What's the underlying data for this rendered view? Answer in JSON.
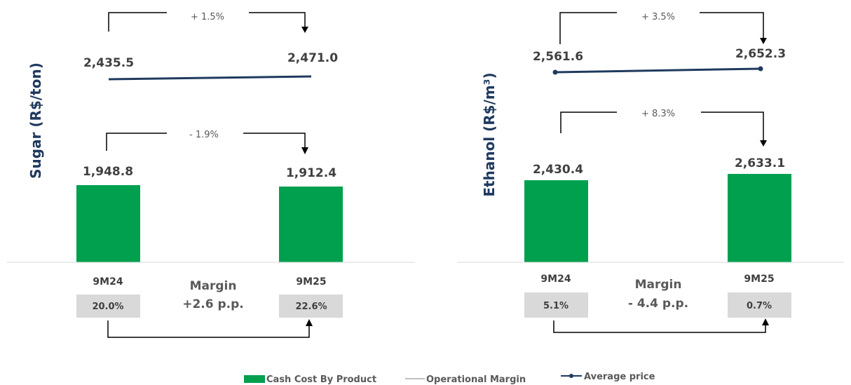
{
  "colors": {
    "bar": "#00a04f",
    "line": "#1f3a5f",
    "margin_box": "#d9d9d9",
    "operational_margin": "#bfbfbf"
  },
  "legend": {
    "cash_cost": "Cash Cost By Product",
    "operational_margin": "Operational Margin",
    "average_price": "Average price"
  },
  "chart_data": [
    {
      "type": "bar",
      "ylabel": "Sugar (R$/ton)",
      "categories": [
        "9M24",
        "9M25"
      ],
      "cash_cost": {
        "values": [
          1948.8,
          1912.4
        ],
        "labels": [
          "1,948.8",
          "1,912.4"
        ],
        "change": "- 1.9%"
      },
      "average_price": {
        "values": [
          2435.5,
          2471.0
        ],
        "labels": [
          "2,435.5",
          "2,471.0"
        ],
        "change": "+ 1.5%"
      },
      "operational_margin": {
        "values": [
          "20.0%",
          "22.6%"
        ],
        "margin_label": "Margin",
        "margin_change": "+2.6 p.p."
      }
    },
    {
      "type": "bar",
      "ylabel": "Ethanol (R$/m³)",
      "categories": [
        "9M24",
        "9M25"
      ],
      "cash_cost": {
        "values": [
          2430.4,
          2633.1
        ],
        "labels": [
          "2,430.4",
          "2,633.1"
        ],
        "change": "+ 8.3%"
      },
      "average_price": {
        "values": [
          2561.6,
          2652.3
        ],
        "labels": [
          "2,561.6",
          "2,652.3"
        ],
        "change": "+ 3.5%"
      },
      "operational_margin": {
        "values": [
          "5.1%",
          "0.7%"
        ],
        "margin_label": "Margin",
        "margin_change": "- 4.4 p.p."
      }
    }
  ]
}
